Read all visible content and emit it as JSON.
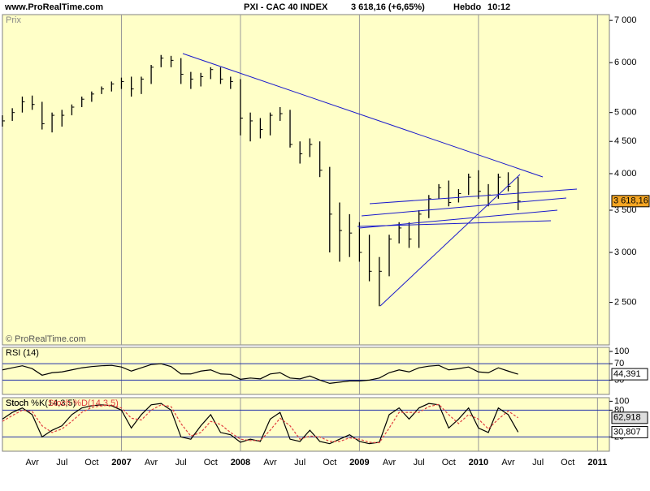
{
  "header": {
    "site": "www.ProRealTime.com",
    "instrument": "PXI - CAC 40 INDEX",
    "quote": "3 618,16 (+6,65%)",
    "period": "Hebdo",
    "time": "10:12"
  },
  "chart_data": [
    {
      "type": "ohlc",
      "panel": "Prix",
      "copyright": "© ProRealTime.com",
      "log_scale": true,
      "color": "#000000",
      "x": [
        2006.0,
        2006.083,
        2006.167,
        2006.25,
        2006.333,
        2006.417,
        2006.5,
        2006.583,
        2006.667,
        2006.75,
        2006.833,
        2006.917,
        2007.0,
        2007.083,
        2007.167,
        2007.25,
        2007.333,
        2007.417,
        2007.5,
        2007.583,
        2007.667,
        2007.75,
        2007.833,
        2007.917,
        2008.0,
        2008.083,
        2008.167,
        2008.25,
        2008.333,
        2008.417,
        2008.5,
        2008.583,
        2008.667,
        2008.75,
        2008.833,
        2008.917,
        2009.0,
        2009.083,
        2009.167,
        2009.25,
        2009.333,
        2009.417,
        2009.5,
        2009.583,
        2009.667,
        2009.75,
        2009.833,
        2009.917,
        2010.0,
        2010.083,
        2010.167,
        2010.25,
        2010.333
      ],
      "high": [
        4950,
        5080,
        5300,
        5320,
        5200,
        5000,
        5050,
        5150,
        5300,
        5400,
        5500,
        5600,
        5680,
        5700,
        5700,
        5950,
        6170,
        6150,
        6100,
        5800,
        5780,
        5900,
        5900,
        5700,
        5650,
        5000,
        4900,
        5000,
        5100,
        5050,
        4500,
        4550,
        4500,
        4100,
        3600,
        3450,
        3350,
        3200,
        2950,
        3200,
        3350,
        3350,
        3500,
        3700,
        3850,
        3900,
        3780,
        4000,
        4050,
        3850,
        4000,
        4020,
        3950
      ],
      "low": [
        4750,
        4850,
        5000,
        5050,
        4700,
        4650,
        4750,
        4950,
        5100,
        5200,
        5350,
        5400,
        5450,
        5300,
        5350,
        5550,
        5900,
        5900,
        5550,
        5450,
        5500,
        5650,
        5550,
        5450,
        4600,
        4500,
        4550,
        4600,
        4850,
        4400,
        4150,
        4250,
        3950,
        3000,
        2900,
        2950,
        2900,
        2700,
        2465,
        2750,
        3100,
        3050,
        3050,
        3400,
        3650,
        3550,
        3600,
        3700,
        3650,
        3550,
        3650,
        3750,
        3500
      ],
      "close": [
        4850,
        5000,
        5200,
        5150,
        4800,
        4950,
        4950,
        5100,
        5250,
        5350,
        5450,
        5550,
        5600,
        5450,
        5650,
        5900,
        6100,
        6050,
        5750,
        5650,
        5700,
        5850,
        5650,
        5600,
        4900,
        4850,
        4700,
        4950,
        4980,
        4450,
        4300,
        4450,
        4050,
        3450,
        3250,
        3220,
        3000,
        2800,
        2800,
        3150,
        3280,
        3150,
        3450,
        3650,
        3800,
        3600,
        3720,
        3950,
        3750,
        3700,
        3950,
        3820,
        3618.16
      ],
      "last_label": "3 618,16",
      "xlim": [
        2006.0,
        2011.1
      ],
      "xticks": [
        {
          "value": 2006.25,
          "label": "Avr"
        },
        {
          "value": 2006.5,
          "label": "Jul"
        },
        {
          "value": 2006.75,
          "label": "Oct"
        },
        2007,
        {
          "value": 2007.25,
          "label": "Avr"
        },
        {
          "value": 2007.5,
          "label": "Jul"
        },
        {
          "value": 2007.75,
          "label": "Oct"
        },
        2008,
        {
          "value": 2008.25,
          "label": "Avr"
        },
        {
          "value": 2008.5,
          "label": "Jul"
        },
        {
          "value": 2008.75,
          "label": "Oct"
        },
        2009,
        {
          "value": 2009.25,
          "label": "Avr"
        },
        {
          "value": 2009.5,
          "label": "Jul"
        },
        {
          "value": 2009.75,
          "label": "Oct"
        },
        2010,
        {
          "value": 2010.25,
          "label": "Avr"
        },
        {
          "value": 2010.5,
          "label": "Jul"
        },
        {
          "value": 2010.75,
          "label": "Oct"
        },
        2011
      ],
      "ylim": [
        2140,
        7150
      ],
      "yticks": [
        {
          "value": 2500,
          "label": "2 500"
        },
        {
          "value": 3000,
          "label": "3 000"
        },
        {
          "value": 3500,
          "label": "3 500"
        },
        {
          "value": 4000,
          "label": "4 000"
        },
        {
          "value": 4500,
          "label": "4 500"
        },
        {
          "value": 5000,
          "label": "5 000"
        },
        {
          "value": 6000,
          "label": "6 000"
        },
        {
          "value": 7000,
          "label": "7 000"
        }
      ]
    },
    {
      "type": "line",
      "panel": "RSI (14)",
      "series": [
        {
          "name": "RSI (14)",
          "color": "#000000",
          "values": [
            55,
            60,
            65,
            58,
            42,
            48,
            50,
            55,
            60,
            63,
            65,
            66,
            62,
            52,
            60,
            68,
            70,
            63,
            45,
            45,
            52,
            55,
            45,
            44,
            32,
            35,
            33,
            45,
            48,
            35,
            33,
            40,
            30,
            22,
            25,
            28,
            28,
            30,
            35,
            48,
            55,
            50,
            60,
            64,
            66,
            55,
            58,
            62,
            50,
            48,
            60,
            52,
            44.391
          ],
          "last_label": "44,391"
        }
      ],
      "ylim": [
        -5,
        110
      ],
      "yticks": [
        100,
        70,
        30
      ]
    },
    {
      "type": "line",
      "panel": "Stoch",
      "series": [
        {
          "name": "Stoch %K(14,3,5)",
          "color": "#000000",
          "values": [
            60,
            75,
            85,
            70,
            20,
            35,
            45,
            70,
            85,
            90,
            92,
            90,
            80,
            40,
            70,
            92,
            95,
            80,
            20,
            15,
            45,
            70,
            30,
            25,
            8,
            15,
            10,
            60,
            75,
            15,
            10,
            35,
            10,
            5,
            15,
            25,
            10,
            5,
            8,
            70,
            85,
            60,
            85,
            95,
            92,
            40,
            60,
            85,
            40,
            30,
            85,
            70,
            30.807
          ],
          "last_label": "30,807"
        },
        {
          "name": "Stoch %D(14,3,5)",
          "color": "#e04040",
          "values": [
            55,
            68,
            80,
            77,
            45,
            30,
            38,
            55,
            75,
            86,
            90,
            91,
            85,
            62,
            58,
            80,
            92,
            88,
            50,
            22,
            30,
            55,
            48,
            30,
            15,
            12,
            12,
            35,
            62,
            45,
            15,
            22,
            20,
            10,
            10,
            18,
            15,
            8,
            7,
            40,
            75,
            75,
            75,
            88,
            93,
            70,
            50,
            70,
            60,
            38,
            60,
            78,
            62.918
          ],
          "last_label": "62,918"
        }
      ],
      "ylim": [
        -12,
        108
      ],
      "yticks": [
        100,
        80,
        20
      ]
    }
  ]
}
